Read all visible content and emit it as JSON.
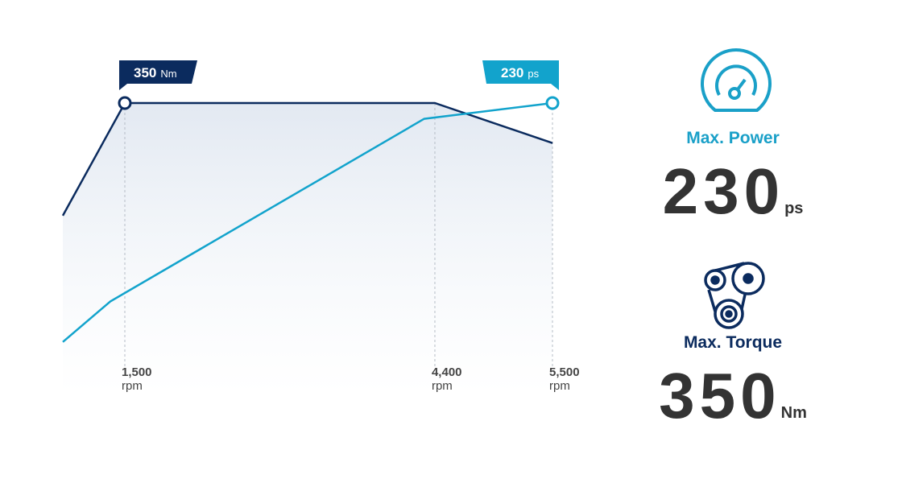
{
  "chart_data": {
    "type": "line",
    "xlim": [
      920,
      5500
    ],
    "xticks": [
      {
        "value": 1500,
        "label": "1,500"
      },
      {
        "value": 4400,
        "label": "4,400"
      },
      {
        "value": 5500,
        "label": "5,500"
      }
    ],
    "x_unit": "rpm",
    "ylim": [
      0,
      350
    ],
    "y2lim": [
      0,
      230
    ],
    "series": [
      {
        "name": "Torque",
        "color": "#0b2b5e",
        "x": [
          920,
          1500,
          4400,
          5500
        ],
        "values": [
          198,
          350,
          350,
          296
        ]
      },
      {
        "name": "Power",
        "color": "#12a3cc",
        "axis": "y2",
        "x": [
          920,
          1365,
          4300,
          5500
        ],
        "values": [
          18,
          54,
          216,
          230
        ]
      }
    ],
    "annotations": [
      {
        "series": 0,
        "x": 1500,
        "value": 350,
        "unit": "Nm"
      },
      {
        "series": 1,
        "x": 5500,
        "value": 230,
        "unit": "ps"
      }
    ]
  },
  "specs": [
    {
      "label": "Max. Power",
      "value": "230",
      "unit": "ps",
      "color": "#1aa0c8"
    },
    {
      "label": "Max. Torque",
      "value": "350",
      "unit": "Nm",
      "color": "#0b2b5e"
    }
  ]
}
